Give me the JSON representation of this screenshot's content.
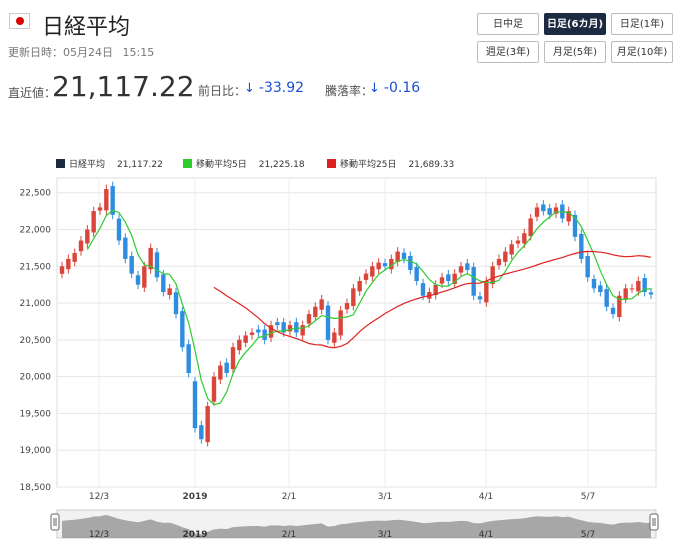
{
  "header": {
    "title": "日経平均",
    "updated_label": "更新日時：05月24日",
    "updated_time": "15:15",
    "price_label": "直近値：",
    "price": "21,117.22",
    "change_label": "前日比：",
    "change": "-33.92",
    "rate_label": "騰落率：",
    "rate": "-0.16",
    "down_arrow": "↓"
  },
  "buttons": [
    {
      "label": "日中足",
      "active": false
    },
    {
      "label": "日足(6カ月)",
      "active": true
    },
    {
      "label": "日足(1年)",
      "active": false
    },
    {
      "label": "週足(3年)",
      "active": false
    },
    {
      "label": "月足(5年)",
      "active": false
    },
    {
      "label": "月足(10年)",
      "active": false
    }
  ],
  "legend": [
    {
      "name": "日経平均",
      "value": "21,117.22",
      "color": "#1b2a40"
    },
    {
      "name": "移動平均5日",
      "value": "21,225.18",
      "color": "#2ecc2e"
    },
    {
      "name": "移動平均25日",
      "value": "21,689.33",
      "color": "#e02020"
    }
  ],
  "chart_data": {
    "type": "candlestick",
    "y_ticks": [
      "22,500",
      "22,000",
      "21,500",
      "21,000",
      "20,500",
      "20,000",
      "19,500",
      "19,000",
      "18,500"
    ],
    "ylim": [
      18500,
      22700
    ],
    "x_labels": [
      "12/3",
      "2019",
      "2/1",
      "3/1",
      "4/1",
      "5/7"
    ],
    "navigator_labels": [
      "12/3",
      "2019",
      "2/1",
      "3/1",
      "4/1",
      "5/7"
    ],
    "colors": {
      "up": "#d9453b",
      "down": "#2e8de0",
      "ma5": "#2ecc2e",
      "ma25": "#e02020"
    },
    "closes": [
      21500,
      21600,
      21680,
      21850,
      22000,
      22250,
      22300,
      22550,
      22200,
      21850,
      21600,
      21400,
      21250,
      21500,
      21750,
      21350,
      21150,
      21200,
      20850,
      20400,
      20050,
      19300,
      19150,
      19600,
      20000,
      20150,
      20050,
      20400,
      20500,
      20560,
      20600,
      20600,
      20500,
      20700,
      20700,
      20600,
      20700,
      20600,
      20700,
      20850,
      20950,
      21050,
      20500,
      20600,
      20900,
      21000,
      21200,
      21300,
      21400,
      21500,
      21550,
      21500,
      21600,
      21700,
      21600,
      21450,
      21300,
      21100,
      21150,
      21250,
      21350,
      21300,
      21400,
      21500,
      21450,
      21100,
      21050,
      21300,
      21500,
      21600,
      21700,
      21800,
      21850,
      21950,
      22150,
      22300,
      22250,
      22200,
      22300,
      22150,
      22250,
      21900,
      21600,
      21350,
      21200,
      21150,
      20950,
      20850,
      21100,
      21200,
      21200,
      21300,
      21150,
      21117
    ]
  }
}
